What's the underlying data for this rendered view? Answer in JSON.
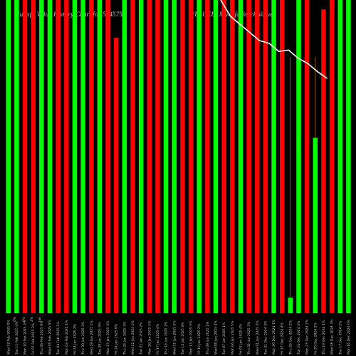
{
  "chart_data": {
    "type": "bar",
    "title_left": "Munafa Value History Chart for 524575",
    "title_right": "(BLUEB) Munafa Stock Value",
    "ylim": [
      0,
      100
    ],
    "colors": {
      "up": "#00ff00",
      "down": "#ff0000",
      "line": "#ffffff",
      "stick": "#8b5a00"
    },
    "categories": [
      "Wed 12 Feb 2025 0%",
      "Tue 11 Feb 2025 4%",
      "Mon 10 Feb 2025 2%",
      "Fri 07 Feb 2025 2%",
      "Thu 06 Feb 2025 0%",
      "Wed 05 Feb 2025 5%",
      "Tue 04 Feb 2025 1%",
      "Mon 03 Feb 2025 1%",
      "Fri 31 Jan 2025 3%",
      "Thu 30 Jan 2025 2%",
      "Wed 29 Jan 2025 1%",
      "Tue 28 Jan 2025 4%",
      "Mon 27 Jan 2025 3%",
      "Fri 24 Jan 2025 0%",
      "Thu 23 Jan 2025 3%",
      "Wed 22 Jan 2025 1%",
      "Tue 21 Jan 2025 2%",
      "Mon 20 Jan 2025 1%",
      "Fri 17 Jan 2025 4%",
      "Thu 16 Jan 2025 2%",
      "Wed 15 Jan 2025 2%",
      "Tue 14 Jan 2025 3%",
      "Mon 13 Jan 2025 5%",
      "Fri 10 Jan 2025 2%",
      "Thu 09 Jan 2025 1%",
      "Wed 08 Jan 2025 4%",
      "Tue 07 Jan 2025 1%",
      "Mon 06 Jan 2025 5%",
      "Fri 03 Jan 2025 4%",
      "Thu 02 Jan 2025 3%",
      "Wed 01 Jan 2025 2%",
      "Tue 31 Dec 2024 3%",
      "Mon 30 Dec 2024 1%",
      "Fri 27 Dec 2024 4%",
      "Thu 26 Dec 2024 2%",
      "Tue 24 Dec 2024 3%",
      "Mon 23 Dec 2024 2%",
      "Fri 20 Dec 2024 2%",
      "Thu 19 Dec 2024 1%",
      "Wed 18 Dec 2024 3%",
      "Tue 17 Dec 2024 2%",
      "Mon 16 Dec 2024 0%"
    ],
    "stub_labels": [
      "0%",
      "0%",
      "2%",
      "Jan"
    ],
    "bar_colors": [
      "green",
      "green",
      "red",
      "red",
      "green",
      "green",
      "red",
      "red",
      "green",
      "green",
      "red",
      "green",
      "red",
      "red",
      "green",
      "red",
      "green",
      "red",
      "red",
      "green",
      "green",
      "red",
      "red",
      "green",
      "red",
      "green",
      "red",
      "red",
      "green",
      "red",
      "red",
      "red",
      "green",
      "red",
      "green",
      "green",
      "red",
      "green",
      "red",
      "red",
      "green",
      "green"
    ],
    "values": [
      100,
      100,
      100,
      100,
      100,
      100,
      100,
      100,
      100,
      100,
      100,
      100,
      100,
      88,
      100,
      100,
      100,
      100,
      100,
      100,
      100,
      100,
      100,
      100,
      100,
      100,
      100,
      100,
      100,
      100,
      100,
      100,
      100,
      100,
      5,
      100,
      100,
      56,
      97,
      100,
      100,
      100
    ],
    "line_values": [
      null,
      null,
      null,
      null,
      null,
      null,
      null,
      null,
      null,
      null,
      null,
      null,
      null,
      null,
      null,
      null,
      null,
      null,
      null,
      null,
      null,
      null,
      null,
      null,
      null,
      null,
      null,
      null,
      null,
      null,
      null,
      null,
      null,
      null,
      null,
      null,
      null,
      null,
      null,
      null,
      null,
      null
    ]
  }
}
